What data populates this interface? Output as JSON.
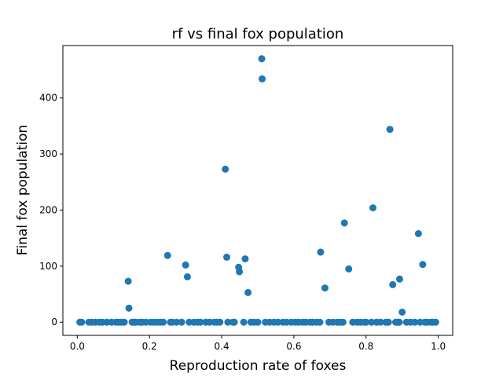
{
  "chart_data": {
    "type": "scatter",
    "title": "rf vs final fox population",
    "xlabel": "Reproduction rate of foxes",
    "ylabel": "Final fox population",
    "xlim": [
      -0.04,
      1.04
    ],
    "ylim": [
      -23.5,
      493.5
    ],
    "xticks": [
      0.0,
      0.2,
      0.4,
      0.6,
      0.8,
      1.0
    ],
    "xtick_labels": [
      "0.0",
      "0.2",
      "0.4",
      "0.6",
      "0.8",
      "1.0"
    ],
    "yticks": [
      0,
      100,
      200,
      300,
      400
    ],
    "ytick_labels": [
      "0",
      "100",
      "200",
      "300",
      "400"
    ],
    "grid": false,
    "marker_color": "#1f77b4",
    "series": [
      {
        "x": [
          0.007,
          0.012,
          0.032,
          0.04,
          0.05,
          0.061,
          0.07,
          0.082,
          0.095,
          0.107,
          0.114,
          0.122,
          0.13,
          0.141,
          0.143,
          0.152,
          0.157,
          0.162,
          0.173,
          0.18,
          0.19,
          0.203,
          0.212,
          0.221,
          0.23,
          0.238,
          0.25,
          0.258,
          0.263,
          0.275,
          0.289,
          0.3,
          0.305,
          0.31,
          0.323,
          0.333,
          0.341,
          0.356,
          0.367,
          0.38,
          0.386,
          0.395,
          0.41,
          0.414,
          0.417,
          0.431,
          0.435,
          0.447,
          0.449,
          0.461,
          0.465,
          0.473,
          0.481,
          0.49,
          0.5,
          0.511,
          0.512,
          0.521,
          0.533,
          0.545,
          0.556,
          0.57,
          0.58,
          0.593,
          0.604,
          0.613,
          0.624,
          0.633,
          0.645,
          0.652,
          0.663,
          0.672,
          0.674,
          0.686,
          0.697,
          0.708,
          0.72,
          0.729,
          0.736,
          0.74,
          0.752,
          0.763,
          0.775,
          0.784,
          0.795,
          0.8,
          0.815,
          0.819,
          0.829,
          0.84,
          0.855,
          0.862,
          0.866,
          0.874,
          0.882,
          0.888,
          0.892,
          0.893,
          0.9,
          0.912,
          0.923,
          0.935,
          0.945,
          0.95,
          0.957,
          0.963,
          0.97,
          0.98,
          0.985,
          0.993
        ],
        "y": [
          0,
          0,
          0,
          0,
          0,
          0,
          0,
          0,
          0,
          0,
          0,
          0,
          0,
          73,
          25,
          0,
          0,
          0,
          0,
          0,
          0,
          0,
          0,
          0,
          0,
          0,
          119,
          0,
          0,
          0,
          0,
          102,
          81,
          0,
          0,
          0,
          0,
          0,
          0,
          0,
          0,
          0,
          273,
          116,
          0,
          0,
          0,
          98,
          90,
          0,
          113,
          53,
          0,
          0,
          0,
          470,
          434,
          0,
          0,
          0,
          0,
          0,
          0,
          0,
          0,
          0,
          0,
          0,
          0,
          0,
          0,
          0,
          125,
          61,
          0,
          0,
          0,
          0,
          0,
          177,
          95,
          0,
          0,
          0,
          0,
          0,
          0,
          204,
          0,
          0,
          0,
          0,
          344,
          67,
          0,
          0,
          0,
          77,
          18,
          0,
          0,
          0,
          158,
          0,
          103,
          0,
          0,
          0,
          0,
          0
        ]
      }
    ]
  }
}
